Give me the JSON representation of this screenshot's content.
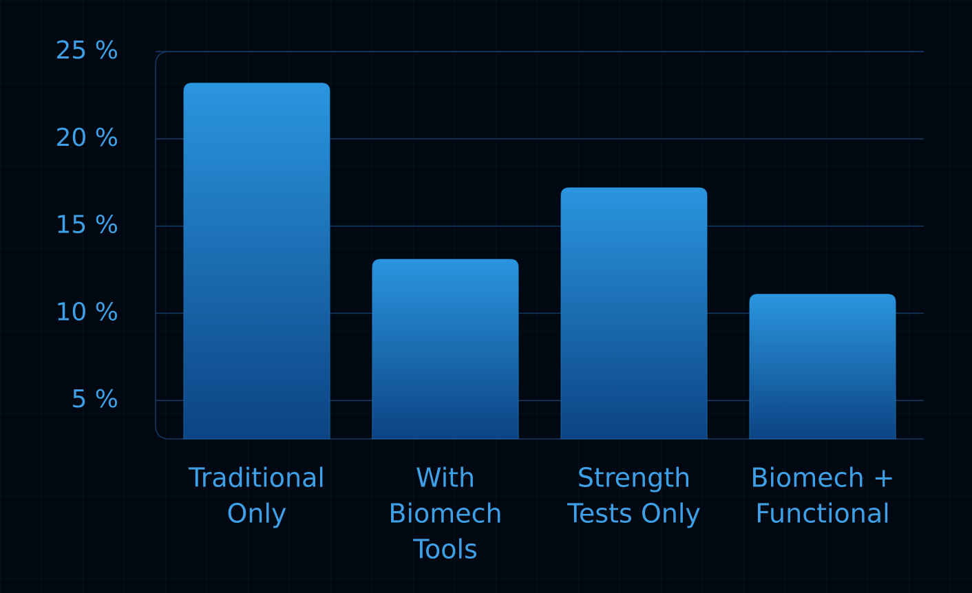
{
  "chart_data": {
    "type": "bar",
    "categories": [
      [
        "Traditional",
        "Only"
      ],
      [
        "With",
        "Biomech",
        "Tools"
      ],
      [
        "Strength",
        "Tests Only"
      ],
      [
        "Biomech +",
        "Functional"
      ]
    ],
    "values": [
      23.2,
      13.1,
      17.2,
      11.1
    ],
    "color": "#2790da",
    "ylim": [
      2.8,
      25
    ],
    "yticks": [
      {
        "value": 5,
        "label": "5 %"
      },
      {
        "value": 10,
        "label": "10 %"
      },
      {
        "value": 15,
        "label": "15 %"
      },
      {
        "value": 20,
        "label": "20 %"
      },
      {
        "value": 25,
        "label": "25 %"
      }
    ],
    "grid": true
  }
}
